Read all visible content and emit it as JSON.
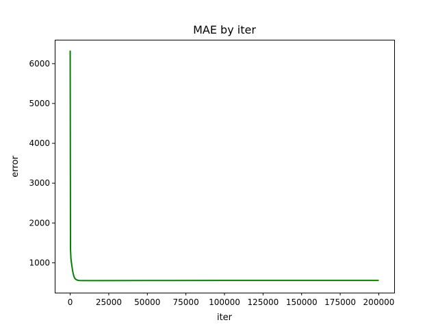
{
  "chart_data": {
    "type": "line",
    "title": "MAE by iter",
    "xlabel": "iter",
    "ylabel": "error",
    "xlim": [
      -10000,
      210000
    ],
    "ylim": [
      250,
      6600
    ],
    "grid": false,
    "xticks": [
      0,
      25000,
      50000,
      75000,
      100000,
      125000,
      150000,
      175000,
      200000
    ],
    "xtick_labels": [
      "0",
      "25000",
      "50000",
      "75000",
      "100000",
      "125000",
      "150000",
      "175000",
      "200000"
    ],
    "yticks": [
      1000,
      2000,
      3000,
      4000,
      5000,
      6000
    ],
    "ytick_labels": [
      "1000",
      "2000",
      "3000",
      "4000",
      "5000",
      "6000"
    ],
    "series": [
      {
        "color": "#008000",
        "x": [
          0,
          200,
          500,
          1000,
          1500,
          2000,
          2500,
          3000,
          3500,
          4000,
          5000,
          6000,
          8000,
          10000,
          20000,
          50000,
          100000,
          150000,
          200000
        ],
        "y": [
          6330,
          1350,
          1100,
          950,
          820,
          720,
          650,
          610,
          590,
          575,
          560,
          555,
          553,
          553,
          554,
          556,
          557,
          557,
          557
        ]
      }
    ]
  }
}
